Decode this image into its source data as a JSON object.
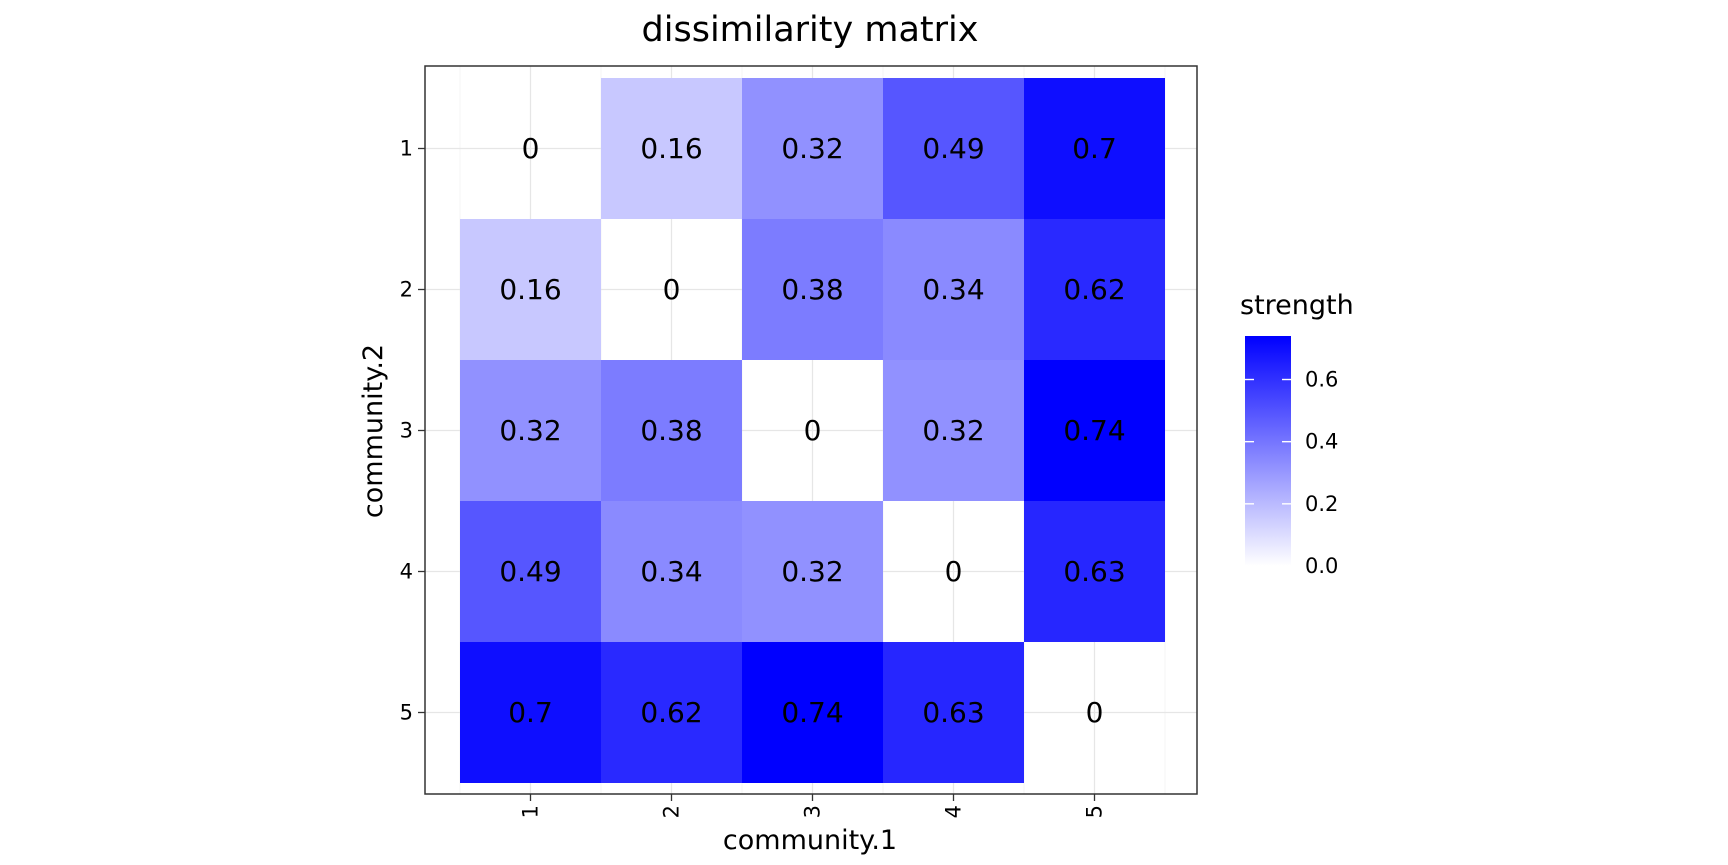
{
  "chart_data": {
    "type": "heatmap",
    "title": "dissimilarity matrix",
    "xlabel": "community.1",
    "ylabel": "community.2",
    "x_categories": [
      "1",
      "2",
      "3",
      "4",
      "5"
    ],
    "y_categories": [
      "1",
      "2",
      "3",
      "4",
      "5"
    ],
    "values": [
      [
        0,
        0.16,
        0.32,
        0.49,
        0.7
      ],
      [
        0.16,
        0,
        0.38,
        0.34,
        0.62
      ],
      [
        0.32,
        0.38,
        0,
        0.32,
        0.74
      ],
      [
        0.49,
        0.34,
        0.32,
        0,
        0.63
      ],
      [
        0.7,
        0.62,
        0.74,
        0.63,
        0
      ]
    ],
    "cell_labels": [
      [
        "0",
        "0.16",
        "0.32",
        "0.49",
        "0.7"
      ],
      [
        "0.16",
        "0",
        "0.38",
        "0.34",
        "0.62"
      ],
      [
        "0.32",
        "0.38",
        "0",
        "0.32",
        "0.74"
      ],
      [
        "0.49",
        "0.34",
        "0.32",
        "0",
        "0.63"
      ],
      [
        "0.7",
        "0.62",
        "0.74",
        "0.63",
        "0"
      ]
    ],
    "x_tick_rotation": "vertical",
    "grid": true,
    "legend": {
      "title": "strength",
      "position": "right",
      "type": "colorbar",
      "ticks": [
        0.0,
        0.2,
        0.4,
        0.6
      ],
      "tick_labels": [
        "0.0",
        "0.2",
        "0.4",
        "0.6"
      ]
    },
    "color_scale": {
      "low": "#ffffff",
      "high": "#0000ff",
      "domain": [
        0,
        0.74
      ]
    }
  }
}
